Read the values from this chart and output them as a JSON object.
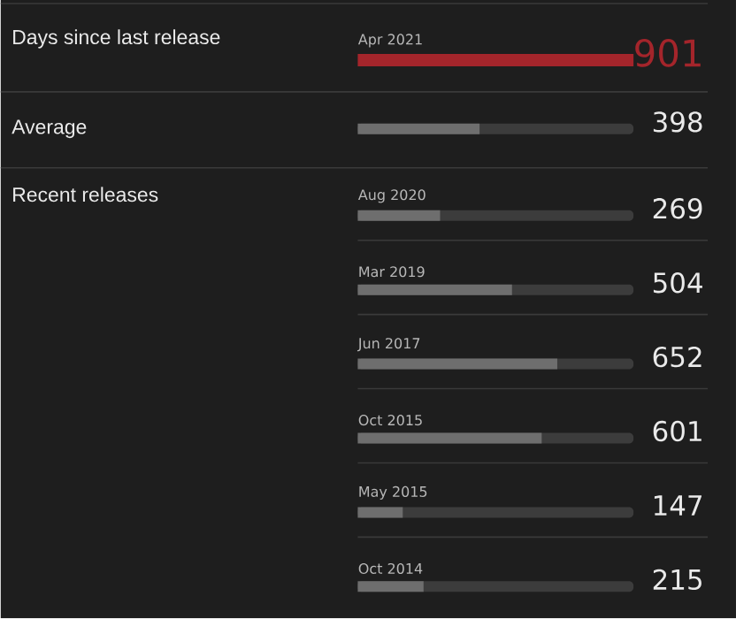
{
  "chart_data": {
    "type": "bar",
    "orientation": "horizontal",
    "categories": [
      "Apr 2021",
      null,
      "Aug 2020",
      "Mar 2019",
      "Jun 2017",
      "Oct 2015",
      "May 2015",
      "Oct 2014"
    ],
    "values": [
      901,
      398,
      269,
      504,
      652,
      601,
      147,
      215
    ],
    "colors": [
      "#a4252b",
      "#6e6e6e",
      "#6e6e6e",
      "#6e6e6e",
      "#6e6e6e",
      "#6e6e6e",
      "#6e6e6e",
      "#6e6e6e"
    ],
    "xlim": [
      0,
      901
    ],
    "tick_labels": false,
    "data_labels": true,
    "annotations": [
      "Days since last release",
      "Average",
      "Recent releases"
    ]
  }
}
